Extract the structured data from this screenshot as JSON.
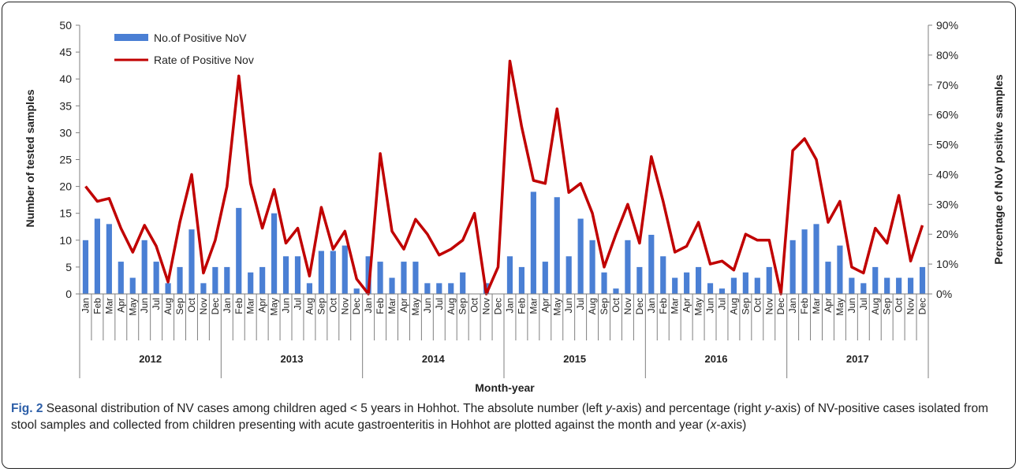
{
  "chart_data": {
    "type": "bar",
    "xlabel": "Month-year",
    "ylabel": "Number of tested samples",
    "ylabel_right": "Percentage of NoV  positive samples",
    "ylim": [
      0,
      50
    ],
    "ylim_right": [
      0,
      90
    ],
    "yticks": [
      "0",
      "5",
      "10",
      "15",
      "20",
      "25",
      "30",
      "35",
      "40",
      "45",
      "50"
    ],
    "yticks_right": [
      "0%",
      "10%",
      "20%",
      "30%",
      "40%",
      "50%",
      "60%",
      "70%",
      "80%",
      "90%"
    ],
    "years": [
      "2012",
      "2013",
      "2014",
      "2015",
      "2016",
      "2017"
    ],
    "months": [
      "Jan",
      "Feb",
      "Mar",
      "Apr",
      "May",
      "Jun",
      "Jul",
      "Aug",
      "Sep",
      "Oct",
      "Nov",
      "Dec"
    ],
    "legend_position": "top-left",
    "grid": false,
    "series": [
      {
        "name": "No.of Positive NoV",
        "type": "bar",
        "axis": "left",
        "color": "#4a7fd4",
        "values": [
          10,
          14,
          13,
          6,
          3,
          10,
          6,
          2,
          5,
          12,
          2,
          5,
          5,
          16,
          4,
          5,
          15,
          7,
          7,
          2,
          8,
          8,
          9,
          1,
          7,
          6,
          3,
          6,
          6,
          2,
          2,
          2,
          4,
          0,
          2,
          0,
          7,
          5,
          19,
          6,
          18,
          7,
          14,
          10,
          4,
          1,
          10,
          5,
          11,
          7,
          3,
          4,
          5,
          2,
          1,
          3,
          4,
          3,
          5,
          0,
          10,
          12,
          13,
          6,
          9,
          3,
          2,
          5,
          3,
          3,
          3,
          5
        ]
      },
      {
        "name": "Rate of Positive Nov",
        "type": "line",
        "axis": "right",
        "unit": "%",
        "color": "#c00000",
        "values": [
          36,
          31,
          32,
          22,
          14,
          23,
          16,
          4,
          24,
          40,
          7,
          18,
          36,
          73,
          37,
          22,
          35,
          17,
          22,
          6,
          29,
          15,
          21,
          5,
          0,
          47,
          21,
          15,
          25,
          20,
          13,
          15,
          18,
          27,
          0,
          9,
          78,
          56,
          38,
          37,
          62,
          34,
          37,
          27,
          9,
          20,
          30,
          17,
          46,
          31,
          14,
          16,
          24,
          10,
          11,
          8,
          20,
          18,
          18,
          0,
          48,
          52,
          45,
          24,
          31,
          9,
          7,
          22,
          17,
          33,
          11,
          23
        ]
      }
    ]
  },
  "caption": {
    "lead": "Fig. 2",
    "text_1": " Seasonal distribution of NV cases among children aged < 5 years in Hohhot. The absolute number (left ",
    "italic_1": "y",
    "text_2": "-axis) and percentage (right ",
    "italic_2": "y",
    "text_3": "-axis) of NV-positive cases isolated from stool samples and collected from children presenting with acute gastroenteritis in Hohhot are plotted against the month and year (",
    "italic_3": "x",
    "text_4": "-axis)"
  }
}
